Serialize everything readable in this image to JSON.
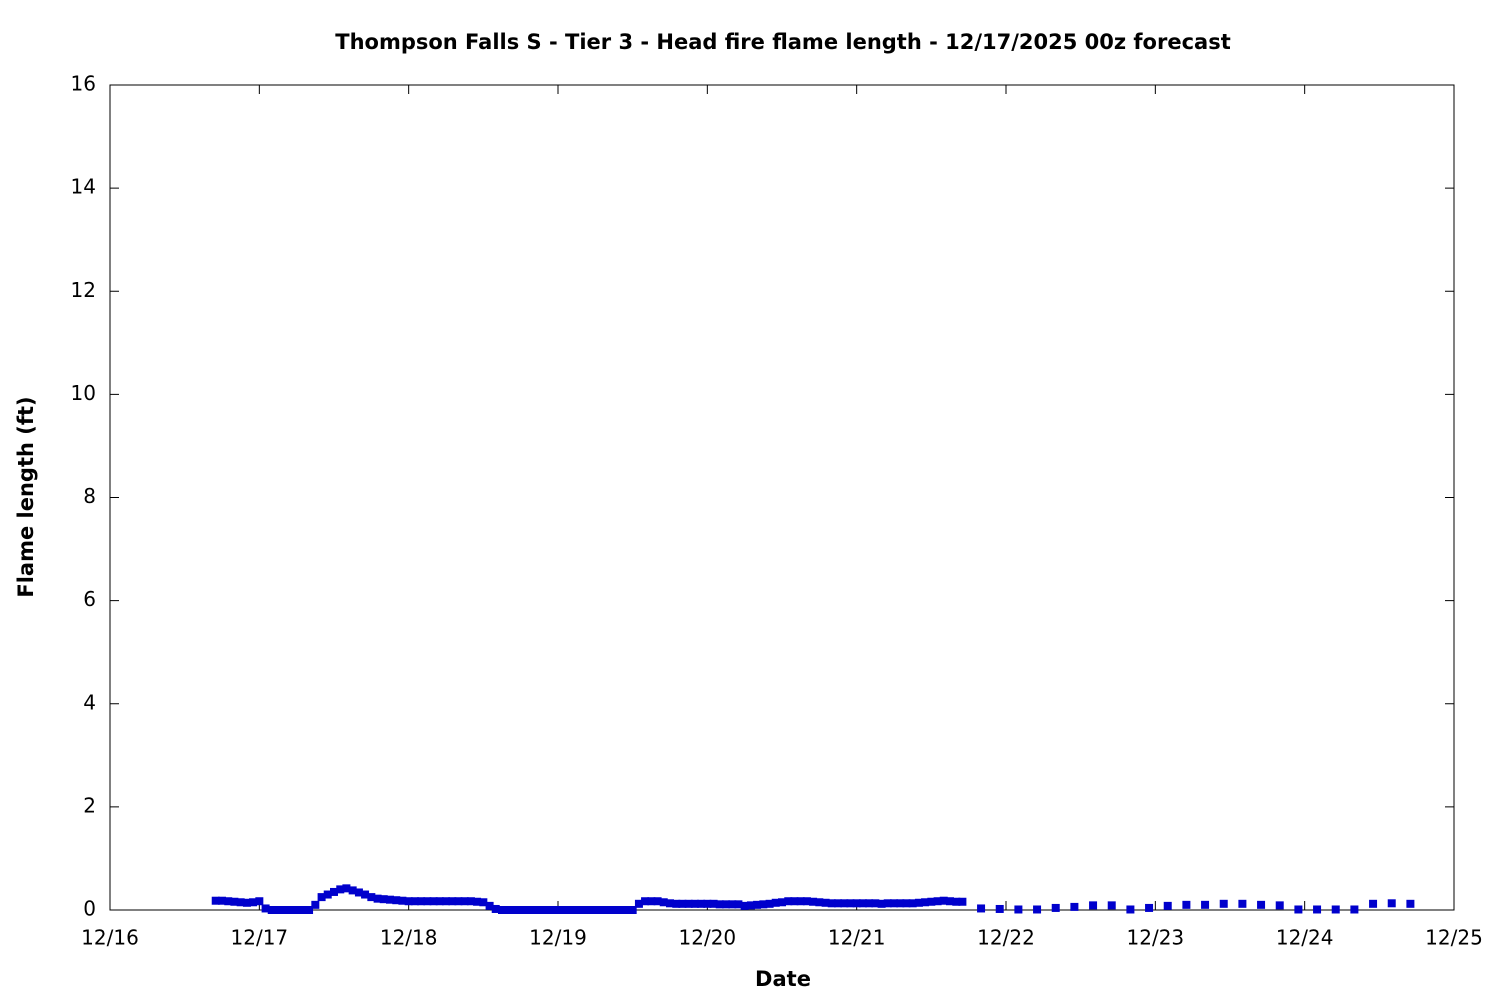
{
  "chart_data": {
    "type": "scatter",
    "title": "Thompson Falls S - Tier 3 - Head fire flame length - 12/17/2025 00z forecast",
    "xlabel": "Date",
    "ylabel": "Flame length (ft)",
    "color": "#0000cc",
    "x": [
      16.708,
      16.75,
      16.792,
      16.833,
      16.875,
      16.917,
      16.958,
      17,
      17.042,
      17.083,
      17.125,
      17.167,
      17.208,
      17.25,
      17.292,
      17.333,
      17.375,
      17.417,
      17.458,
      17.5,
      17.542,
      17.583,
      17.625,
      17.667,
      17.708,
      17.75,
      17.792,
      17.833,
      17.875,
      17.917,
      17.958,
      18,
      18.042,
      18.083,
      18.125,
      18.167,
      18.208,
      18.25,
      18.292,
      18.333,
      18.375,
      18.417,
      18.458,
      18.5,
      18.542,
      18.583,
      18.625,
      18.667,
      18.708,
      18.75,
      18.792,
      18.833,
      18.875,
      18.917,
      18.958,
      19,
      19.042,
      19.083,
      19.125,
      19.167,
      19.208,
      19.25,
      19.292,
      19.333,
      19.375,
      19.417,
      19.458,
      19.5,
      19.542,
      19.583,
      19.625,
      19.667,
      19.708,
      19.75,
      19.792,
      19.833,
      19.875,
      19.917,
      19.958,
      20,
      20.042,
      20.083,
      20.125,
      20.167,
      20.208,
      20.25,
      20.292,
      20.333,
      20.375,
      20.417,
      20.458,
      20.5,
      20.542,
      20.583,
      20.625,
      20.667,
      20.708,
      20.75,
      20.792,
      20.833,
      20.875,
      20.917,
      20.958,
      21,
      21.042,
      21.083,
      21.125,
      21.167,
      21.208,
      21.25,
      21.292,
      21.333,
      21.375,
      21.417,
      21.458,
      21.5,
      21.542,
      21.583,
      21.625,
      21.667,
      21.708,
      21.833,
      21.958,
      22.083,
      22.208,
      22.333,
      22.458,
      22.583,
      22.708,
      22.833,
      22.958,
      23.083,
      23.208,
      23.333,
      23.458,
      23.583,
      23.708,
      23.833,
      23.958,
      24.083,
      24.208,
      24.333,
      24.458,
      24.583,
      24.708
    ],
    "values": [
      0.18,
      0.18,
      0.17,
      0.16,
      0.15,
      0.14,
      0.15,
      0.17,
      0.03,
      0,
      0,
      0,
      0,
      0,
      0,
      0,
      0.1,
      0.25,
      0.3,
      0.35,
      0.4,
      0.42,
      0.38,
      0.34,
      0.3,
      0.25,
      0.22,
      0.21,
      0.2,
      0.19,
      0.18,
      0.17,
      0.17,
      0.17,
      0.17,
      0.17,
      0.17,
      0.17,
      0.17,
      0.17,
      0.17,
      0.17,
      0.16,
      0.15,
      0.08,
      0.02,
      0,
      0,
      0,
      0,
      0,
      0,
      0,
      0,
      0,
      0,
      0,
      0,
      0,
      0,
      0,
      0,
      0,
      0,
      0,
      0,
      0,
      0,
      0.12,
      0.17,
      0.17,
      0.17,
      0.15,
      0.13,
      0.12,
      0.12,
      0.12,
      0.12,
      0.12,
      0.12,
      0.12,
      0.11,
      0.11,
      0.11,
      0.11,
      0.08,
      0.09,
      0.1,
      0.11,
      0.12,
      0.14,
      0.15,
      0.17,
      0.17,
      0.17,
      0.17,
      0.16,
      0.15,
      0.14,
      0.13,
      0.13,
      0.13,
      0.13,
      0.13,
      0.13,
      0.13,
      0.13,
      0.12,
      0.13,
      0.13,
      0.13,
      0.13,
      0.13,
      0.14,
      0.15,
      0.16,
      0.17,
      0.18,
      0.17,
      0.16,
      0.16,
      0.03,
      0.02,
      0.01,
      0.01,
      0.04,
      0.06,
      0.09,
      0.09,
      0.01,
      0.04,
      0.08,
      0.1,
      0.1,
      0.12,
      0.12,
      0.1,
      0.09,
      0.01,
      0.01,
      0.01,
      0.01,
      0.12,
      0.13,
      0.12
    ],
    "xlim": [
      16,
      25
    ],
    "xticks": [
      {
        "value": 16,
        "label": "12/16"
      },
      {
        "value": 17,
        "label": "12/17"
      },
      {
        "value": 18,
        "label": "12/18"
      },
      {
        "value": 19,
        "label": "12/19"
      },
      {
        "value": 20,
        "label": "12/20"
      },
      {
        "value": 21,
        "label": "12/21"
      },
      {
        "value": 22,
        "label": "12/22"
      },
      {
        "value": 23,
        "label": "12/23"
      },
      {
        "value": 24,
        "label": "12/24"
      },
      {
        "value": 25,
        "label": "12/25"
      }
    ],
    "ylim": [
      0,
      16
    ],
    "yticks": [
      0,
      2,
      4,
      6,
      8,
      10,
      12,
      14,
      16
    ],
    "grid": false
  }
}
